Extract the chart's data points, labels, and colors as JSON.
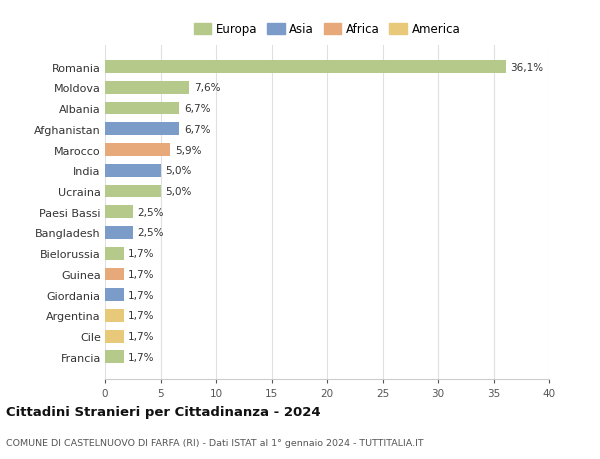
{
  "title": "Cittadini Stranieri per Cittadinanza - 2024",
  "subtitle": "COMUNE DI CASTELNUOVO DI FARFA (RI) - Dati ISTAT al 1° gennaio 2024 - TUTTITALIA.IT",
  "categories": [
    "Francia",
    "Cile",
    "Argentina",
    "Giordania",
    "Guinea",
    "Bielorussia",
    "Bangladesh",
    "Paesi Bassi",
    "Ucraina",
    "India",
    "Marocco",
    "Afghanistan",
    "Albania",
    "Moldova",
    "Romania"
  ],
  "values": [
    1.7,
    1.7,
    1.7,
    1.7,
    1.7,
    1.7,
    2.5,
    2.5,
    5.0,
    5.0,
    5.9,
    6.7,
    6.7,
    7.6,
    36.1
  ],
  "labels": [
    "1,7%",
    "1,7%",
    "1,7%",
    "1,7%",
    "1,7%",
    "1,7%",
    "2,5%",
    "2,5%",
    "5,0%",
    "5,0%",
    "5,9%",
    "6,7%",
    "6,7%",
    "7,6%",
    "36,1%"
  ],
  "colors": [
    "#b5c98a",
    "#e8c97a",
    "#e8c97a",
    "#7b9bc8",
    "#e8a97a",
    "#b5c98a",
    "#7b9bc8",
    "#b5c98a",
    "#b5c98a",
    "#7b9bc8",
    "#e8a97a",
    "#7b9bc8",
    "#b5c98a",
    "#b5c98a",
    "#b5c98a"
  ],
  "legend_labels": [
    "Europa",
    "Asia",
    "Africa",
    "America"
  ],
  "legend_colors": [
    "#b5c98a",
    "#7b9bc8",
    "#e8a97a",
    "#e8c97a"
  ],
  "xlim": [
    0,
    40
  ],
  "xticks": [
    0,
    5,
    10,
    15,
    20,
    25,
    30,
    35,
    40
  ],
  "background_color": "#ffffff",
  "grid_color": "#e0e0e0",
  "bar_height": 0.62,
  "figsize": [
    6.0,
    4.6
  ],
  "dpi": 100,
  "label_fontsize": 7.5,
  "ytick_fontsize": 8,
  "xtick_fontsize": 7.5,
  "title_fontsize": 9.5,
  "subtitle_fontsize": 6.8,
  "legend_fontsize": 8.5
}
